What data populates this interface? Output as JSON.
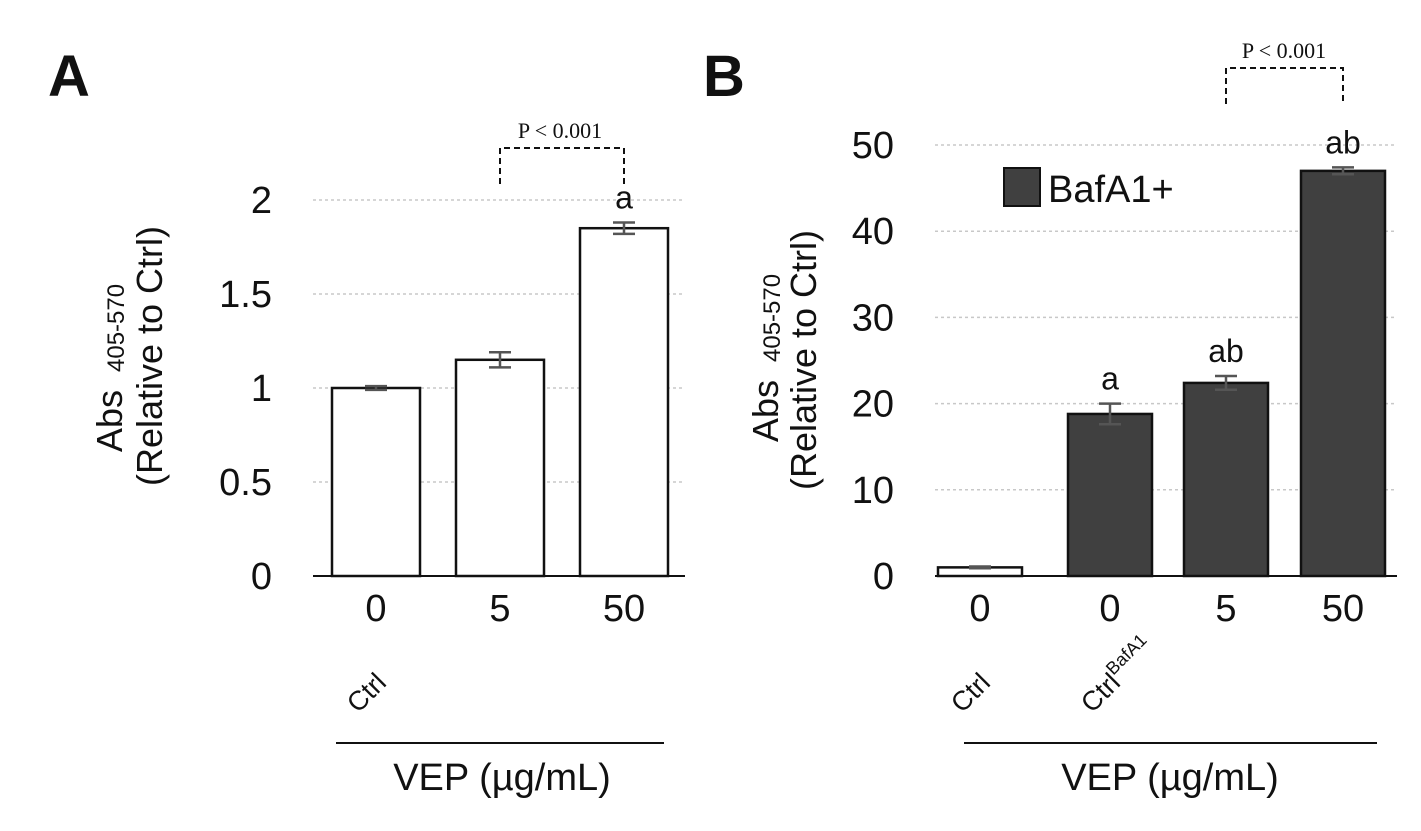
{
  "chart_data": [
    {
      "panel": "A",
      "type": "bar",
      "categories": [
        "0",
        "5",
        "50"
      ],
      "values": [
        1.0,
        1.15,
        1.85
      ],
      "errors": [
        0.01,
        0.04,
        0.03
      ],
      "bar_colors": [
        "#ffffff",
        "#ffffff",
        "#ffffff"
      ],
      "letters": [
        "",
        "",
        "a"
      ],
      "ylim": [
        0,
        2
      ],
      "yticks": [
        0,
        0.5,
        1,
        1.5,
        2
      ],
      "ytick_labels": [
        "0",
        "0.5",
        "1",
        "1.5",
        "2"
      ],
      "ylabel_main": "Abs",
      "ylabel_sub": "405-570",
      "ylabel_line2": "(Relative to Ctrl)",
      "xlabel": "VEP (µg/mL)",
      "ctrl_labels": [
        "Ctrl",
        "",
        ""
      ],
      "ctrl_sup": [
        "",
        "",
        ""
      ],
      "bracket": {
        "from": 1,
        "to": 2,
        "label": "P < 0.001"
      },
      "grid": true
    },
    {
      "panel": "B",
      "type": "bar",
      "categories": [
        "0",
        "0",
        "5",
        "50"
      ],
      "values": [
        1.0,
        18.8,
        22.4,
        47.0
      ],
      "errors": [
        0.1,
        1.2,
        0.8,
        0.4
      ],
      "bar_colors": [
        "#ffffff",
        "#404040",
        "#404040",
        "#404040"
      ],
      "letters": [
        "",
        "a",
        "ab",
        "ab"
      ],
      "ylim": [
        0,
        50
      ],
      "yticks": [
        0,
        10,
        20,
        30,
        40,
        50
      ],
      "ytick_labels": [
        "0",
        "10",
        "20",
        "30",
        "40",
        "50"
      ],
      "ylabel_main": "Abs",
      "ylabel_sub": "405-570",
      "ylabel_line2": "(Relative to Ctrl)",
      "xlabel": "VEP (µg/mL)",
      "ctrl_labels": [
        "Ctrl",
        "Ctrl",
        "",
        ""
      ],
      "ctrl_sup": [
        "",
        "BafA1",
        "",
        ""
      ],
      "legend": {
        "label": "BafA1+",
        "color": "#404040",
        "placement": "top-left"
      },
      "bracket": {
        "from": 2,
        "to": 3,
        "label": "P < 0.001"
      },
      "grid": true
    }
  ]
}
